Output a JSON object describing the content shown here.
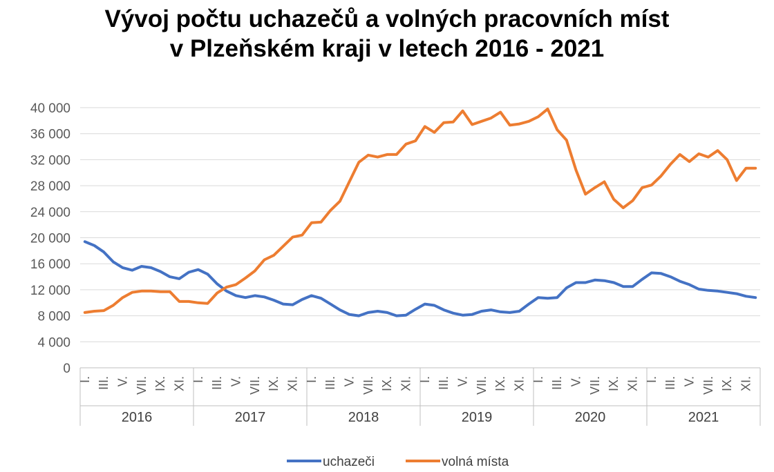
{
  "title_line1": "Vývoj počtu uchazečů a volných pracovních míst",
  "title_line2": "v Plzeňském kraji v letech 2016 - 2021",
  "chart_data": {
    "type": "line",
    "title": "Vývoj počtu uchazečů a volných pracovních míst v Plzeňském kraji v letech 2016 - 2021",
    "ylim": [
      0,
      40000
    ],
    "yticks": [
      0,
      4000,
      8000,
      12000,
      16000,
      20000,
      24000,
      28000,
      32000,
      36000,
      40000
    ],
    "ytick_labels": [
      "0",
      "4 000",
      "8 000",
      "12 000",
      "16 000",
      "20 000",
      "24 000",
      "28 000",
      "32 000",
      "36 000",
      "40 000"
    ],
    "grid": true,
    "years": [
      "2016",
      "2017",
      "2018",
      "2019",
      "2020",
      "2021"
    ],
    "month_labels": [
      "I.",
      "III.",
      "V.",
      "VII.",
      "IX.",
      "XI."
    ],
    "month_label_positions": [
      1,
      3,
      5,
      7,
      9,
      11
    ],
    "legend_position": "bottom",
    "series": [
      {
        "name": "uchazeči",
        "color": "#4472C4",
        "values": [
          19400,
          18800,
          17800,
          16300,
          15400,
          15000,
          15600,
          15400,
          14800,
          14000,
          13700,
          14700,
          15100,
          14400,
          12900,
          11800,
          11100,
          10800,
          11100,
          10900,
          10400,
          9800,
          9700,
          10500,
          11100,
          10700,
          9800,
          8900,
          8200,
          8000,
          8500,
          8700,
          8500,
          8000,
          8100,
          9000,
          9800,
          9600,
          8900,
          8400,
          8100,
          8200,
          8700,
          8900,
          8600,
          8500,
          8700,
          9800,
          10800,
          10700,
          10800,
          12300,
          13100,
          13100,
          13500,
          13400,
          13100,
          12500,
          12500,
          13600,
          14600,
          14500,
          14000,
          13300,
          12800,
          12100,
          11900,
          11800,
          11600,
          11400,
          11000,
          10800
        ]
      },
      {
        "name": "volná místa",
        "color": "#ED7D31",
        "values": [
          8500,
          8700,
          8800,
          9600,
          10800,
          11600,
          11800,
          11800,
          11700,
          11700,
          10200,
          10200,
          10000,
          9900,
          11500,
          12400,
          12800,
          13800,
          14900,
          16600,
          17300,
          18700,
          20100,
          20400,
          22300,
          22400,
          24200,
          25600,
          28600,
          31600,
          32700,
          32400,
          32800,
          32800,
          34400,
          34900,
          37100,
          36200,
          37700,
          37800,
          39500,
          37400,
          37900,
          38400,
          39300,
          37300,
          37500,
          37900,
          38600,
          39800,
          36600,
          35000,
          30400,
          26700,
          27700,
          28600,
          25900,
          24600,
          25700,
          27700,
          28100,
          29500,
          31300,
          32800,
          31700,
          32900,
          32400,
          33400,
          32000,
          28800,
          30700,
          30700
        ]
      }
    ]
  }
}
